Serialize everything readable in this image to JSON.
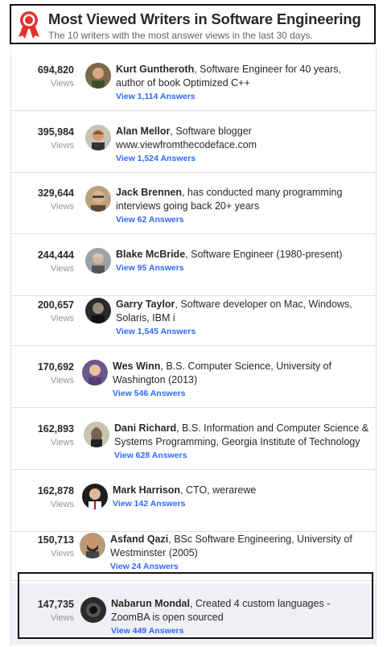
{
  "header": {
    "title": "Most Viewed Writers in Software Engineering",
    "subtitle": "The 10 writers with the most answer views in the last 30 days.",
    "badge_icon": "award-badge-icon",
    "accent": "#e63030"
  },
  "views_label": "Views",
  "colors": {
    "link": "#2e69ff",
    "muted": "#939598",
    "highlight_bg": "#eef0f3"
  },
  "writers": [
    {
      "views": "694,820",
      "name": "Kurt Guntheroth",
      "bio": ", Software Engineer for 40 years, author of book Optimized C++",
      "answers": "View 1,114 Answers"
    },
    {
      "views": "395,984",
      "name": "Alan Mellor",
      "bio": ", Software blogger www.viewfromthecodeface.com",
      "answers": "View 1,524 Answers"
    },
    {
      "views": "329,644",
      "name": "Jack Brennen",
      "bio": ", has conducted many programming interviews going back 20+ years",
      "answers": "View 62 Answers"
    },
    {
      "views": "244,444",
      "name": "Blake McBride",
      "bio": ", Software Engineer (1980-present)",
      "answers": "View 95 Answers"
    },
    {
      "views": "200,657",
      "name": "Garry Taylor",
      "bio": ", Software developer on Mac, Windows, Solaris, IBM i",
      "answers": "View 1,545 Answers"
    },
    {
      "views": "170,692",
      "name": "Wes Winn",
      "bio": ", B.S. Computer Science, University of Washington (2013)",
      "answers": "View 546 Answers"
    },
    {
      "views": "162,893",
      "name": "Dani Richard",
      "bio": ", B.S. Information and Computer Science & Systems Programming, Georgia Institute of Technology",
      "answers": "View 628 Answers"
    },
    {
      "views": "162,878",
      "name": "Mark Harrison",
      "bio": ", CTO, werarewe",
      "answers": "View 142 Answers"
    },
    {
      "views": "150,713",
      "name": "Asfand Qazi",
      "bio": ", BSc Software Engineering, University of Westminster (2005)",
      "answers": "View 24 Answers"
    },
    {
      "views": "147,735",
      "name": "Nabarun Mondal",
      "bio": ", Created 4 custom languages - ZoomBA is open sourced",
      "answers": "View 449 Answers"
    }
  ]
}
